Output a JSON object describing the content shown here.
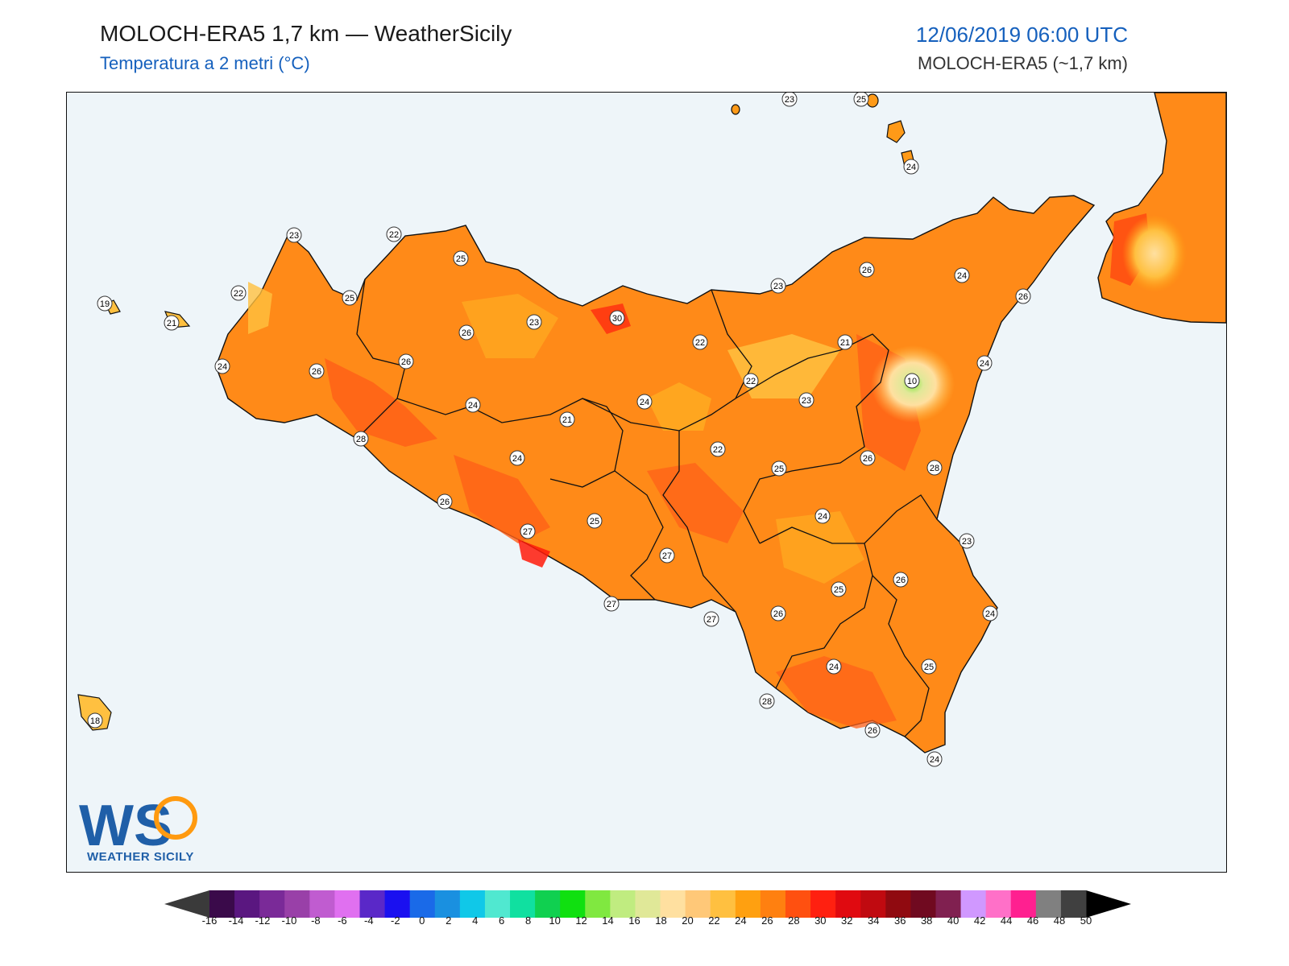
{
  "header": {
    "title": "MOLOCH-ERA5 1,7 km — WeatherSicily",
    "subtitle": "Temperatura a 2 metri (°C)",
    "datetime": "12/06/2019 06:00 UTC",
    "model": "MOLOCH-ERA5 (~1,7 km)"
  },
  "logo": {
    "letters": "WS",
    "name": "WEATHER SICILY"
  },
  "map": {
    "sea_color": "#eef5f9",
    "labels": [
      "23",
      "25",
      "24",
      "23",
      "22",
      "25",
      "19",
      "22",
      "25",
      "21",
      "26",
      "23",
      "30",
      "22",
      "26",
      "24",
      "26",
      "24",
      "26",
      "21",
      "24",
      "21",
      "10",
      "22",
      "23",
      "23",
      "22",
      "25",
      "26",
      "24",
      "24",
      "28",
      "28",
      "24",
      "26",
      "25",
      "27",
      "27",
      "24",
      "25",
      "26",
      "23",
      "27",
      "27",
      "26",
      "26",
      "24",
      "24",
      "25",
      "28",
      "26",
      "24",
      "18"
    ]
  },
  "colorbar": {
    "ticks": [
      "-16",
      "-14",
      "-12",
      "-10",
      "-8",
      "-6",
      "-4",
      "-2",
      "0",
      "2",
      "4",
      "6",
      "8",
      "10",
      "12",
      "14",
      "16",
      "18",
      "20",
      "22",
      "24",
      "26",
      "28",
      "30",
      "32",
      "34",
      "36",
      "38",
      "40",
      "42",
      "44",
      "46",
      "48",
      "50"
    ],
    "colors": [
      "#3a0a4a",
      "#5a1780",
      "#7a2a98",
      "#9940a8",
      "#c05cd0",
      "#e070f0",
      "#5a28c8",
      "#1a10f0",
      "#1a6ae8",
      "#1a90e0",
      "#10c8e8",
      "#50e8d0",
      "#10e0a0",
      "#10d050",
      "#10e010",
      "#80e840",
      "#c0ec80",
      "#e0e898",
      "#ffe0a0",
      "#ffc878",
      "#ffc040",
      "#ffa010",
      "#ff8010",
      "#ff5010",
      "#ff2010",
      "#e00a10",
      "#c00a10",
      "#900a10",
      "#700a20",
      "#802050",
      "#d098ff",
      "#ff70c8",
      "#ff2090",
      "#808080",
      "#404040"
    ]
  }
}
